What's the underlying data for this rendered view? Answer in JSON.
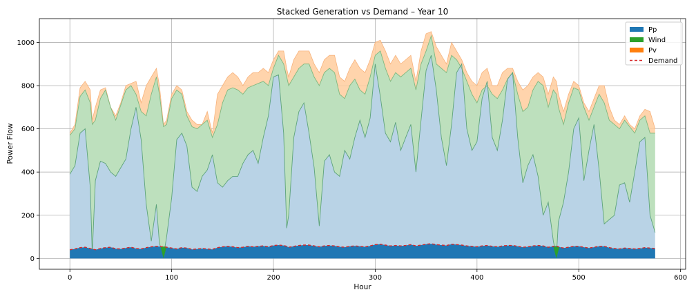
{
  "chart_data": {
    "type": "area",
    "title": "Stacked Generation vs Demand – Year 10",
    "xlabel": "Hour",
    "ylabel": "Power Flow",
    "xlim": [
      -30,
      605
    ],
    "ylim": [
      -50,
      1110
    ],
    "xticks": [
      0,
      100,
      200,
      300,
      400,
      500,
      600
    ],
    "yticks": [
      0,
      200,
      400,
      600,
      800,
      1000
    ],
    "grid": true,
    "legend_position": "top-right",
    "legend": [
      {
        "label": "Pp",
        "kind": "patch"
      },
      {
        "label": "Wind",
        "kind": "patch"
      },
      {
        "label": "Pv",
        "kind": "patch"
      },
      {
        "label": "Demand",
        "kind": "dashed-line"
      }
    ],
    "x": [
      0,
      5,
      10,
      15,
      20,
      22,
      25,
      30,
      35,
      40,
      45,
      50,
      55,
      60,
      65,
      70,
      75,
      80,
      85,
      88,
      92,
      95,
      100,
      105,
      110,
      115,
      120,
      125,
      130,
      135,
      140,
      145,
      150,
      155,
      160,
      165,
      170,
      175,
      180,
      185,
      190,
      195,
      200,
      205,
      210,
      213,
      215,
      220,
      225,
      230,
      235,
      240,
      245,
      250,
      255,
      260,
      265,
      270,
      275,
      280,
      285,
      290,
      295,
      300,
      305,
      310,
      315,
      320,
      325,
      330,
      335,
      340,
      345,
      350,
      355,
      360,
      365,
      370,
      375,
      380,
      385,
      390,
      395,
      400,
      405,
      410,
      415,
      420,
      425,
      430,
      435,
      440,
      445,
      450,
      455,
      460,
      465,
      470,
      475,
      478,
      480,
      485,
      490,
      495,
      500,
      505,
      510,
      515,
      520,
      525,
      530,
      535,
      540,
      545,
      550,
      555,
      560,
      565,
      570,
      575
    ],
    "series": [
      {
        "name": "Pp",
        "color": "#1f77b4",
        "stack_top": [
          390,
          430,
          580,
          600,
          330,
          20,
          360,
          450,
          440,
          400,
          380,
          420,
          460,
          600,
          700,
          550,
          250,
          80,
          250,
          70,
          10,
          100,
          280,
          550,
          580,
          520,
          330,
          310,
          380,
          410,
          480,
          350,
          330,
          360,
          380,
          380,
          440,
          480,
          500,
          440,
          560,
          660,
          840,
          850,
          580,
          140,
          200,
          560,
          680,
          720,
          580,
          420,
          150,
          450,
          480,
          400,
          380,
          500,
          460,
          560,
          640,
          560,
          650,
          900,
          750,
          580,
          540,
          630,
          500,
          560,
          620,
          400,
          640,
          870,
          940,
          780,
          560,
          430,
          620,
          860,
          900,
          600,
          500,
          540,
          740,
          820,
          560,
          500,
          640,
          830,
          860,
          560,
          350,
          430,
          480,
          380,
          200,
          260,
          80,
          10,
          170,
          260,
          400,
          600,
          650,
          360,
          500,
          620,
          410,
          160,
          180,
          200,
          340,
          350,
          260,
          400,
          540,
          560,
          200,
          120
        ]
      },
      {
        "name": "Wind",
        "color": "#2ca02c",
        "stack_top": [
          570,
          600,
          750,
          780,
          720,
          620,
          640,
          740,
          780,
          700,
          640,
          710,
          780,
          800,
          760,
          680,
          660,
          760,
          840,
          760,
          610,
          620,
          740,
          780,
          760,
          660,
          610,
          600,
          620,
          640,
          560,
          620,
          720,
          780,
          790,
          780,
          760,
          790,
          800,
          810,
          820,
          800,
          880,
          940,
          900,
          840,
          800,
          840,
          880,
          900,
          900,
          840,
          800,
          860,
          880,
          860,
          760,
          740,
          800,
          830,
          780,
          760,
          840,
          940,
          960,
          880,
          820,
          860,
          840,
          860,
          880,
          780,
          900,
          960,
          1030,
          900,
          880,
          860,
          940,
          920,
          880,
          820,
          760,
          720,
          780,
          800,
          760,
          740,
          780,
          830,
          860,
          760,
          680,
          700,
          780,
          820,
          800,
          700,
          780,
          760,
          700,
          620,
          720,
          790,
          780,
          700,
          640,
          700,
          760,
          720,
          640,
          620,
          600,
          640,
          610,
          580,
          640,
          660,
          580,
          580
        ]
      },
      {
        "name": "Pv",
        "color": "#ff7f0e",
        "stack_top": [
          580,
          620,
          790,
          820,
          780,
          640,
          700,
          780,
          790,
          700,
          660,
          720,
          800,
          810,
          820,
          720,
          800,
          840,
          880,
          800,
          620,
          640,
          760,
          800,
          780,
          680,
          640,
          620,
          620,
          680,
          580,
          760,
          800,
          840,
          860,
          840,
          800,
          840,
          860,
          860,
          880,
          860,
          920,
          960,
          960,
          880,
          840,
          920,
          960,
          960,
          960,
          900,
          860,
          920,
          940,
          940,
          840,
          820,
          880,
          920,
          880,
          860,
          920,
          1000,
          1010,
          960,
          900,
          940,
          900,
          920,
          940,
          820,
          960,
          1040,
          1050,
          980,
          940,
          900,
          1000,
          960,
          920,
          860,
          820,
          800,
          860,
          880,
          800,
          800,
          860,
          880,
          880,
          820,
          780,
          800,
          840,
          860,
          840,
          760,
          840,
          820,
          760,
          680,
          760,
          820,
          800,
          720,
          680,
          740,
          800,
          800,
          700,
          640,
          620,
          660,
          620,
          600,
          660,
          690,
          680,
          600
        ]
      },
      {
        "name": "Demand",
        "color": "#d62728",
        "values": [
          40,
          44,
          50,
          52,
          46,
          44,
          40,
          46,
          50,
          52,
          45,
          44,
          48,
          52,
          46,
          44,
          50,
          54,
          56,
          55,
          54,
          52,
          48,
          44,
          50,
          48,
          42,
          44,
          46,
          44,
          42,
          50,
          54,
          56,
          54,
          50,
          52,
          56,
          54,
          56,
          58,
          54,
          60,
          62,
          60,
          56,
          52,
          56,
          60,
          62,
          62,
          58,
          54,
          58,
          60,
          58,
          54,
          52,
          56,
          58,
          56,
          54,
          58,
          64,
          66,
          62,
          58,
          60,
          58,
          60,
          64,
          58,
          62,
          66,
          68,
          64,
          62,
          60,
          66,
          64,
          62,
          58,
          56,
          54,
          58,
          60,
          56,
          54,
          58,
          60,
          60,
          56,
          52,
          54,
          58,
          60,
          58,
          52,
          56,
          58,
          54,
          48,
          52,
          56,
          56,
          52,
          48,
          52,
          56,
          56,
          50,
          46,
          44,
          48,
          46,
          44,
          46,
          50,
          48,
          46
        ]
      }
    ]
  }
}
